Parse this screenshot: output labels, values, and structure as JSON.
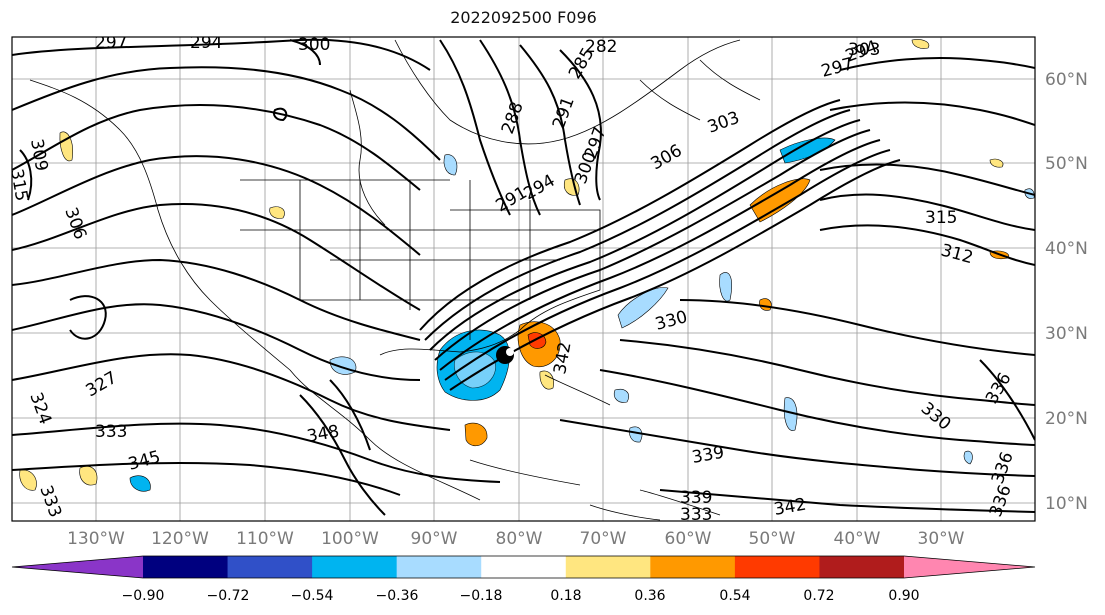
{
  "title": "2022092500 F096",
  "longitude_labels": [
    "130°W",
    "120°W",
    "110°W",
    "100°W",
    "90°W",
    "80°W",
    "70°W",
    "60°W",
    "50°W",
    "40°W",
    "30°W"
  ],
  "latitude_labels": [
    "60°N",
    "50°N",
    "40°N",
    "30°N",
    "20°N",
    "10°N"
  ],
  "colorbar": {
    "colors": [
      "#8a35c8",
      "#00007f",
      "#3050c8",
      "#00b4f0",
      "#a8dcff",
      "#ffffff",
      "#ffe680",
      "#ff9900",
      "#ff3a00",
      "#b01c1c",
      "#ff86b0"
    ],
    "tick_labels": [
      "−0.90",
      "−0.72",
      "−0.54",
      "−0.36",
      "−0.18",
      "0.18",
      "0.36",
      "0.54",
      "0.72",
      "0.90"
    ]
  },
  "contour_labels": [
    "297",
    "294",
    "300",
    "282",
    "285",
    "291",
    "288",
    "297",
    "300",
    "294",
    "291",
    "303",
    "306",
    "315",
    "309",
    "306",
    "312",
    "315",
    "330",
    "342",
    "336",
    "324",
    "327",
    "333",
    "345",
    "348",
    "339",
    "339",
    "333",
    "342",
    "336",
    "330",
    "336",
    "333",
    "303",
    "294",
    "297"
  ]
}
